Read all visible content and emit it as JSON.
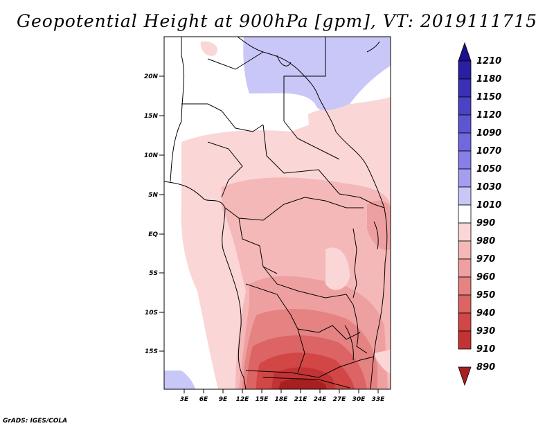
{
  "title": "Geopotential Height at 900hPa [gpm], VT: 2019111715",
  "footer": "GrADS: IGES/COLA",
  "map": {
    "lat_labels": [
      "20N",
      "15N",
      "10N",
      "5N",
      "EQ",
      "5S",
      "10S",
      "15S"
    ],
    "lon_labels": [
      "3E",
      "6E",
      "9E",
      "12E",
      "15E",
      "18E",
      "21E",
      "24E",
      "27E",
      "30E",
      "33E"
    ]
  },
  "colorbar": {
    "levels": [
      "1210",
      "1180",
      "1150",
      "1120",
      "1090",
      "1070",
      "1050",
      "1030",
      "1010",
      "990",
      "980",
      "970",
      "960",
      "950",
      "940",
      "930",
      "910",
      "890"
    ],
    "colors": [
      "#1a0f8c",
      "#2a1ea3",
      "#3a31b6",
      "#4a43c6",
      "#5d56d2",
      "#7268de",
      "#877fe7",
      "#a49ef0",
      "#c9c6f8",
      "#ffffff",
      "#fbd6d6",
      "#f5b8b8",
      "#eea0a0",
      "#e58282",
      "#dc6464",
      "#d24646",
      "#c43333",
      "#a81f1f"
    ]
  }
}
